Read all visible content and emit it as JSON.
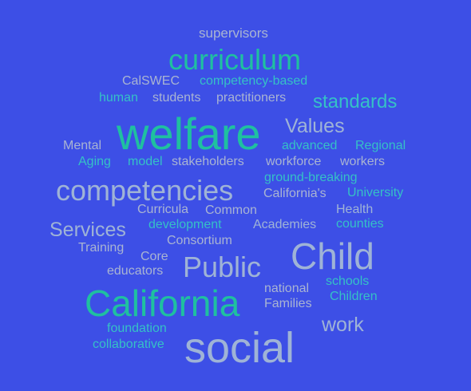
{
  "colors": {
    "background": "#3D4FE6",
    "light": "#A9B4D2",
    "teal": "#35C1C6",
    "green": "#1FC0A0",
    "slate": "#9FB3D6"
  },
  "words": {
    "supervisors": "supervisors",
    "curriculum": "curriculum",
    "calswec": "CalSWEC",
    "competency_based": "competency-based",
    "human": "human",
    "students": "students",
    "practitioners": "practitioners",
    "standards": "standards",
    "welfare": "welfare",
    "values": "Values",
    "mental": "Mental",
    "advanced": "advanced",
    "regional": "Regional",
    "aging": "Aging",
    "model": "model",
    "stakeholders": "stakeholders",
    "workforce": "workforce",
    "workers": "workers",
    "ground_breaking": "ground-breaking",
    "competencies": "competencies",
    "californias": "California's",
    "university": "University",
    "curricula": "Curricula",
    "common": "Common",
    "health": "Health",
    "services": "Services",
    "development": "development",
    "academies": "Academies",
    "counties": "counties",
    "consortium": "Consortium",
    "training": "Training",
    "core": "Core",
    "public": "Public",
    "child": "Child",
    "educators": "educators",
    "schools": "schools",
    "national": "national",
    "california": "California",
    "children": "Children",
    "families": "Families",
    "work": "work",
    "foundation": "foundation",
    "collaborative": "collaborative",
    "social": "social"
  }
}
